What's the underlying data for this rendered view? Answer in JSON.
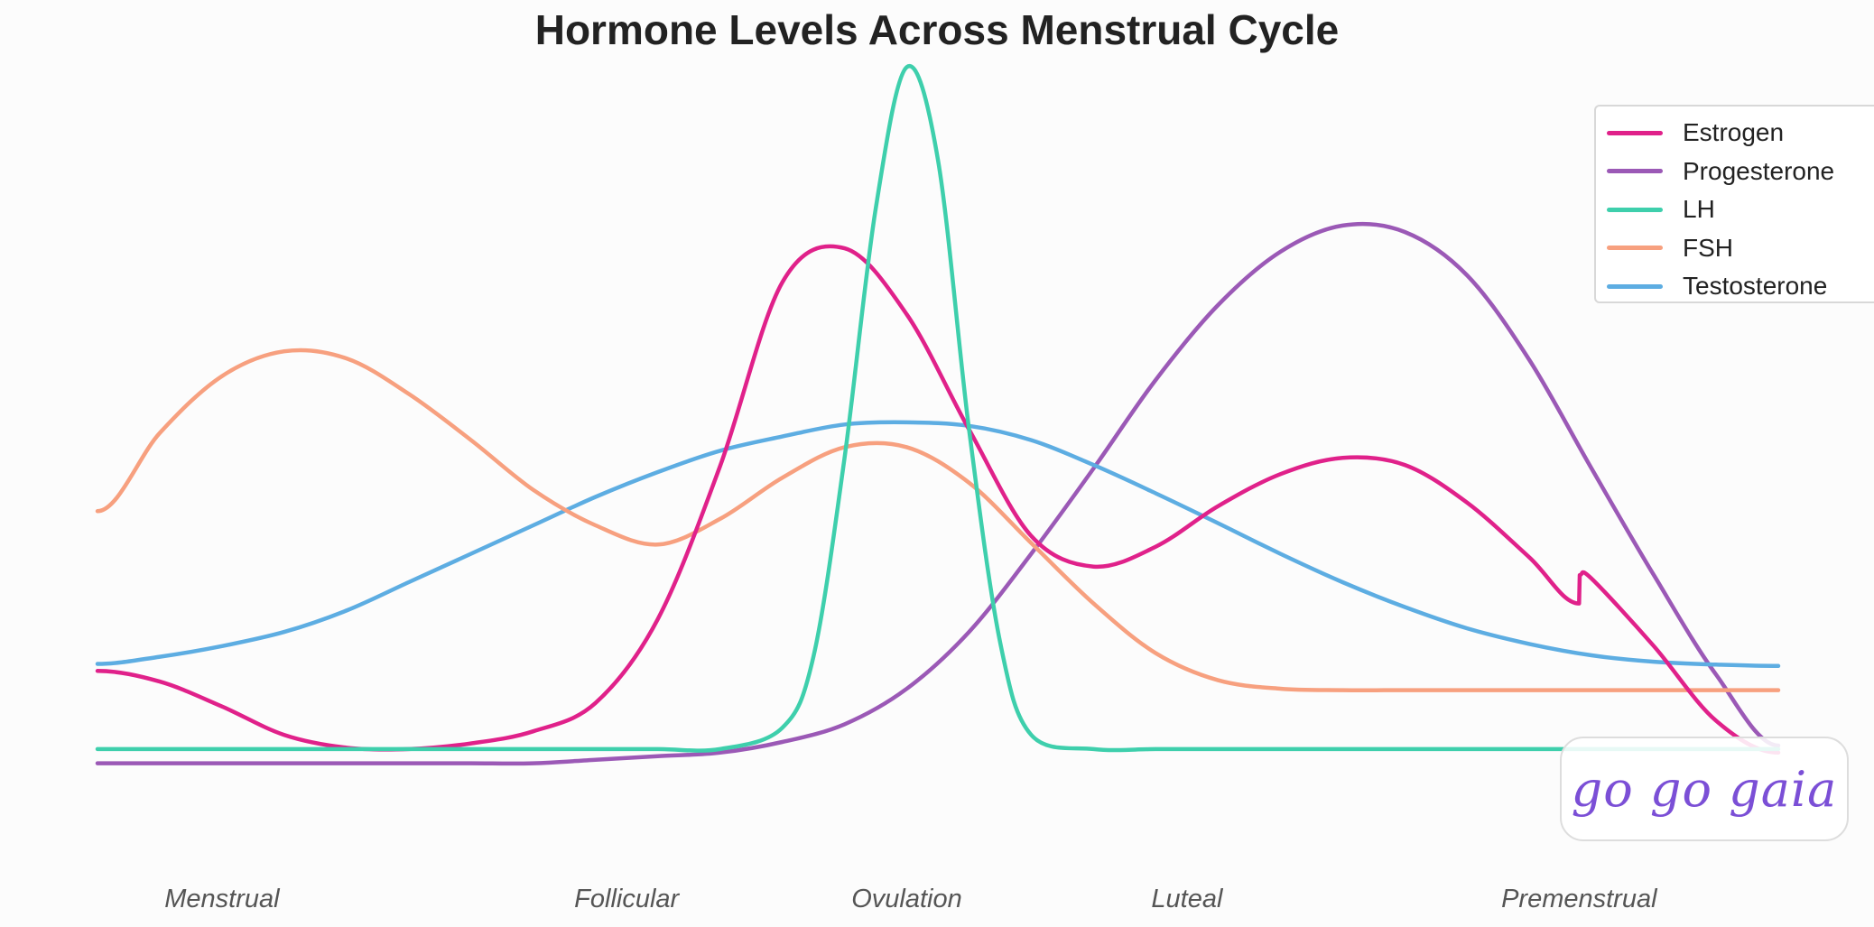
{
  "chart_data": {
    "type": "line",
    "title": "Hormone Levels Across Menstrual Cycle",
    "xlabel": "",
    "ylabel": "",
    "x_range": [
      1,
      28
    ],
    "y_range": [
      0,
      100
    ],
    "grid": false,
    "legend_position": "top-right",
    "phase_labels": [
      {
        "label": "Menstrual",
        "day": 3
      },
      {
        "label": "Follicular",
        "day": 9.5
      },
      {
        "label": "Ovulation",
        "day": 14
      },
      {
        "label": "Luteal",
        "day": 18.5
      },
      {
        "label": "Premenstrual",
        "day": 24.8
      }
    ],
    "series": [
      {
        "name": "Estrogen",
        "color": "#e0218a",
        "points": [
          [
            1,
            18
          ],
          [
            2,
            16.5
          ],
          [
            3,
            13
          ],
          [
            4,
            9
          ],
          [
            5,
            7.2
          ],
          [
            6,
            7
          ],
          [
            7,
            7.8
          ],
          [
            8,
            9.5
          ],
          [
            9,
            13.5
          ],
          [
            10,
            25.3
          ],
          [
            11,
            46.8
          ],
          [
            12,
            72.7
          ],
          [
            13,
            77.5
          ],
          [
            14,
            68.2
          ],
          [
            15,
            52
          ],
          [
            16,
            37
          ],
          [
            17,
            32.7
          ],
          [
            18,
            35.5
          ],
          [
            19,
            41.2
          ],
          [
            20,
            45.7
          ],
          [
            21,
            48
          ],
          [
            22,
            47
          ],
          [
            23,
            41.7
          ],
          [
            24,
            34
          ],
          [
            24.8,
            27.5
          ],
          [
            24.81,
            31.5
          ],
          [
            25,
            31
          ],
          [
            26,
            21.5
          ],
          [
            27,
            11
          ],
          [
            28,
            6.5
          ]
        ]
      },
      {
        "name": "Progesterone",
        "color": "#9b59b6",
        "points": [
          [
            1,
            5
          ],
          [
            2,
            5
          ],
          [
            3,
            5
          ],
          [
            4,
            5
          ],
          [
            5,
            5
          ],
          [
            6,
            5
          ],
          [
            7,
            5
          ],
          [
            8,
            5
          ],
          [
            9,
            5.5
          ],
          [
            10,
            6
          ],
          [
            11,
            6.5
          ],
          [
            12,
            8
          ],
          [
            13,
            10.5
          ],
          [
            14,
            15.5
          ],
          [
            15,
            23.5
          ],
          [
            16,
            34.5
          ],
          [
            17,
            46.5
          ],
          [
            18,
            59
          ],
          [
            19,
            69.5
          ],
          [
            20,
            77
          ],
          [
            21,
            80.7
          ],
          [
            22,
            79.8
          ],
          [
            23,
            73.7
          ],
          [
            24,
            61.8
          ],
          [
            25,
            46.5
          ],
          [
            26,
            31.5
          ],
          [
            27,
            17.5
          ],
          [
            28,
            7.5
          ]
        ]
      },
      {
        "name": "LH",
        "color": "#3ecfac",
        "points": [
          [
            1,
            7
          ],
          [
            2,
            7
          ],
          [
            3,
            7
          ],
          [
            4,
            7
          ],
          [
            5,
            7
          ],
          [
            6,
            7
          ],
          [
            7,
            7
          ],
          [
            8,
            7
          ],
          [
            9,
            7
          ],
          [
            10,
            7
          ],
          [
            11,
            7
          ],
          [
            12,
            10
          ],
          [
            12.5,
            20
          ],
          [
            13,
            48
          ],
          [
            13.5,
            83
          ],
          [
            14,
            103
          ],
          [
            14.5,
            90
          ],
          [
            15,
            52
          ],
          [
            15.5,
            22
          ],
          [
            16,
            9
          ],
          [
            17,
            7
          ],
          [
            18,
            7
          ],
          [
            19,
            7
          ],
          [
            20,
            7
          ],
          [
            21,
            7
          ],
          [
            22,
            7
          ],
          [
            23,
            7
          ],
          [
            24,
            7
          ],
          [
            25,
            7
          ],
          [
            26,
            7
          ],
          [
            27,
            7
          ],
          [
            28,
            7
          ]
        ]
      },
      {
        "name": "FSH",
        "color": "#f7a07f",
        "points": [
          [
            1,
            40.5
          ],
          [
            2,
            51.5
          ],
          [
            3,
            59.5
          ],
          [
            4,
            63
          ],
          [
            5,
            62
          ],
          [
            6,
            57
          ],
          [
            7,
            50.5
          ],
          [
            8,
            43.5
          ],
          [
            9,
            38.5
          ],
          [
            10,
            35.8
          ],
          [
            11,
            39.4
          ],
          [
            12,
            45.2
          ],
          [
            13,
            49.5
          ],
          [
            14,
            49.5
          ],
          [
            15,
            44.5
          ],
          [
            16,
            36
          ],
          [
            17,
            27.5
          ],
          [
            18,
            20.5
          ],
          [
            19,
            16.7
          ],
          [
            20,
            15.5
          ],
          [
            21,
            15.3
          ],
          [
            22,
            15.3
          ],
          [
            23,
            15.3
          ],
          [
            24,
            15.3
          ],
          [
            25,
            15.3
          ],
          [
            26,
            15.3
          ],
          [
            27,
            15.3
          ],
          [
            28,
            15.3
          ]
        ]
      },
      {
        "name": "Testosterone",
        "color": "#5dade2",
        "points": [
          [
            1,
            19
          ],
          [
            2,
            20
          ],
          [
            3,
            21.5
          ],
          [
            4,
            23.5
          ],
          [
            5,
            26.5
          ],
          [
            6,
            30.5
          ],
          [
            7,
            34.5
          ],
          [
            8,
            38.5
          ],
          [
            9,
            42.5
          ],
          [
            10,
            46
          ],
          [
            11,
            49
          ],
          [
            12,
            51
          ],
          [
            13,
            52.7
          ],
          [
            14,
            53
          ],
          [
            15,
            52.5
          ],
          [
            16,
            50.5
          ],
          [
            17,
            47
          ],
          [
            18,
            43
          ],
          [
            19,
            38.8
          ],
          [
            20,
            34.5
          ],
          [
            21,
            30.5
          ],
          [
            22,
            27
          ],
          [
            23,
            24
          ],
          [
            24,
            21.8
          ],
          [
            25,
            20.2
          ],
          [
            26,
            19.3
          ],
          [
            27,
            18.9
          ],
          [
            28,
            18.7
          ]
        ]
      }
    ]
  },
  "watermark": "go go gaia"
}
